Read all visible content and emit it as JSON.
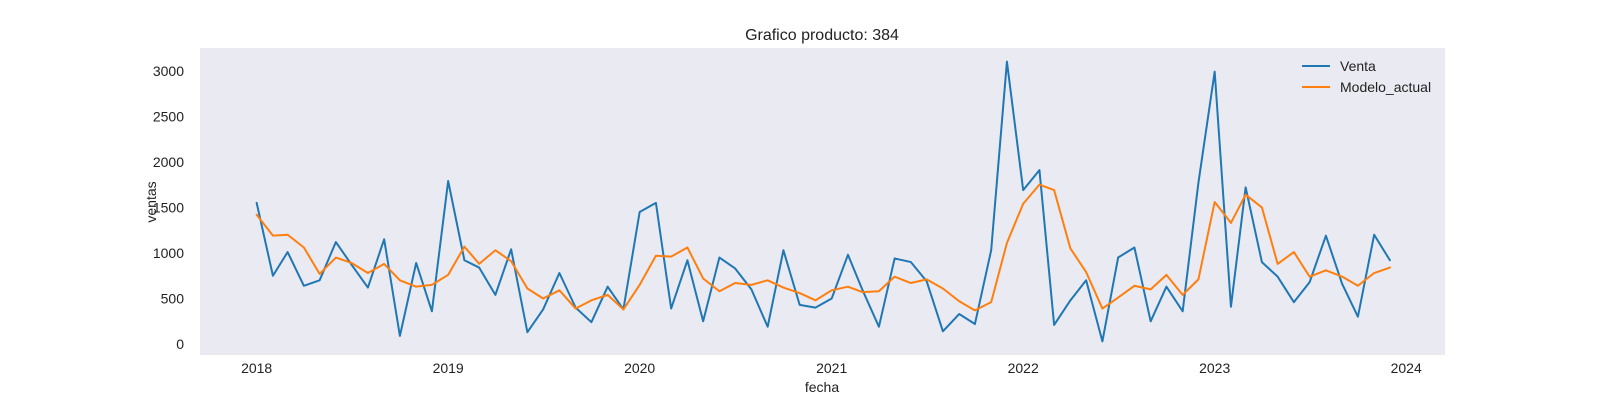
{
  "chart_data": {
    "type": "line",
    "title": "Grafico producto: 384",
    "xlabel": "fecha",
    "ylabel": "ventas",
    "x_start": "2018-01",
    "x_step": "month",
    "xlim": [
      "2017-09-15",
      "2024-03-15"
    ],
    "ylim": [
      -120,
      3250
    ],
    "x_ticks": [
      "2018",
      "2019",
      "2020",
      "2021",
      "2022",
      "2023",
      "2024"
    ],
    "y_ticks": [
      0,
      500,
      1000,
      1500,
      2000,
      2500,
      3000
    ],
    "grid": false,
    "legend_position": "top-right",
    "background": "#eaeaf2",
    "series": [
      {
        "name": "Venta",
        "color": "#1f77b4",
        "values": [
          1550,
          750,
          1010,
          640,
          700,
          1120,
          870,
          620,
          1150,
          90,
          890,
          360,
          1790,
          920,
          840,
          540,
          1040,
          130,
          380,
          780,
          400,
          240,
          630,
          380,
          1450,
          1550,
          390,
          920,
          250,
          950,
          830,
          600,
          190,
          1030,
          430,
          400,
          500,
          980,
          590,
          190,
          940,
          900,
          690,
          140,
          330,
          220,
          1030,
          3100,
          1690,
          1910,
          210,
          480,
          700,
          30,
          950,
          1060,
          250,
          630,
          360,
          1770,
          2990,
          410,
          1720,
          900,
          740,
          460,
          680,
          1190,
          660,
          300,
          1200,
          920
        ]
      },
      {
        "name": "Modelo_actual",
        "color": "#ff7f0e",
        "values": [
          1420,
          1190,
          1200,
          1060,
          770,
          950,
          890,
          780,
          880,
          700,
          630,
          650,
          760,
          1070,
          880,
          1030,
          910,
          610,
          500,
          590,
          390,
          480,
          540,
          380,
          650,
          970,
          960,
          1060,
          720,
          580,
          670,
          650,
          700,
          620,
          560,
          480,
          590,
          630,
          570,
          580,
          740,
          670,
          710,
          610,
          470,
          370,
          460,
          1110,
          1540,
          1750,
          1690,
          1050,
          790,
          390,
          510,
          640,
          600,
          760,
          540,
          710,
          1560,
          1330,
          1640,
          1500,
          880,
          1010,
          740,
          810,
          740,
          640,
          780,
          840
        ]
      }
    ]
  }
}
